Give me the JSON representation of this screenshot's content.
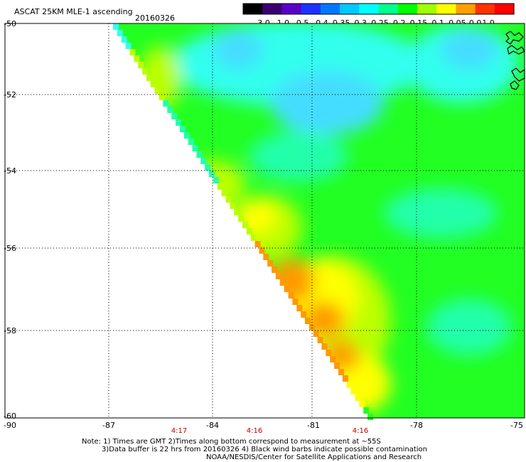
{
  "header": {
    "title": "ASCAT 25KM MLE-1 ascending",
    "date": "20160326"
  },
  "colorbar": {
    "labels": [
      "-3.0",
      "-1.0",
      "-0.5",
      "-0.4",
      "-0.35",
      "-0.3",
      "-0.25",
      "-0.2",
      "-0.15",
      "-0.1",
      "-0.05",
      "0.0",
      "1.0"
    ],
    "colors": [
      "#000000",
      "#3a0070",
      "#5a00c8",
      "#1e32ff",
      "#0078ff",
      "#00c8ff",
      "#00ffff",
      "#00ff8c",
      "#00ff00",
      "#a0ff00",
      "#ffff00",
      "#ffa000",
      "#ff3200",
      "#ff0000"
    ]
  },
  "map": {
    "lat_labels": [
      "-50",
      "-52",
      "-54",
      "-56",
      "-58",
      "-60"
    ],
    "lon_labels": [
      "-90",
      "-87",
      "-84",
      "-81",
      "-78",
      "-75"
    ],
    "time_labels": [
      "4:17",
      "4:16",
      "4:16"
    ],
    "palette": {
      "cyan": "#33ffee",
      "lightblue": "#44ddff",
      "aqua": "#22ffaa",
      "green": "#22ff22",
      "yellowgreen": "#bbff00",
      "yellow": "#ffff00",
      "orange": "#ff9900",
      "darkorange": "#ff6600"
    }
  },
  "notes": {
    "line1": "Note: 1) Times are GMT 2)Times along bottom correspond to measurement at ~55S",
    "line2": "3)Data buffer is 22 hrs from 20160326 4) Black wind barbs indicate possible contamination",
    "line3": "NOAA/NESDIS/Center for Satellite Applications and Research"
  }
}
